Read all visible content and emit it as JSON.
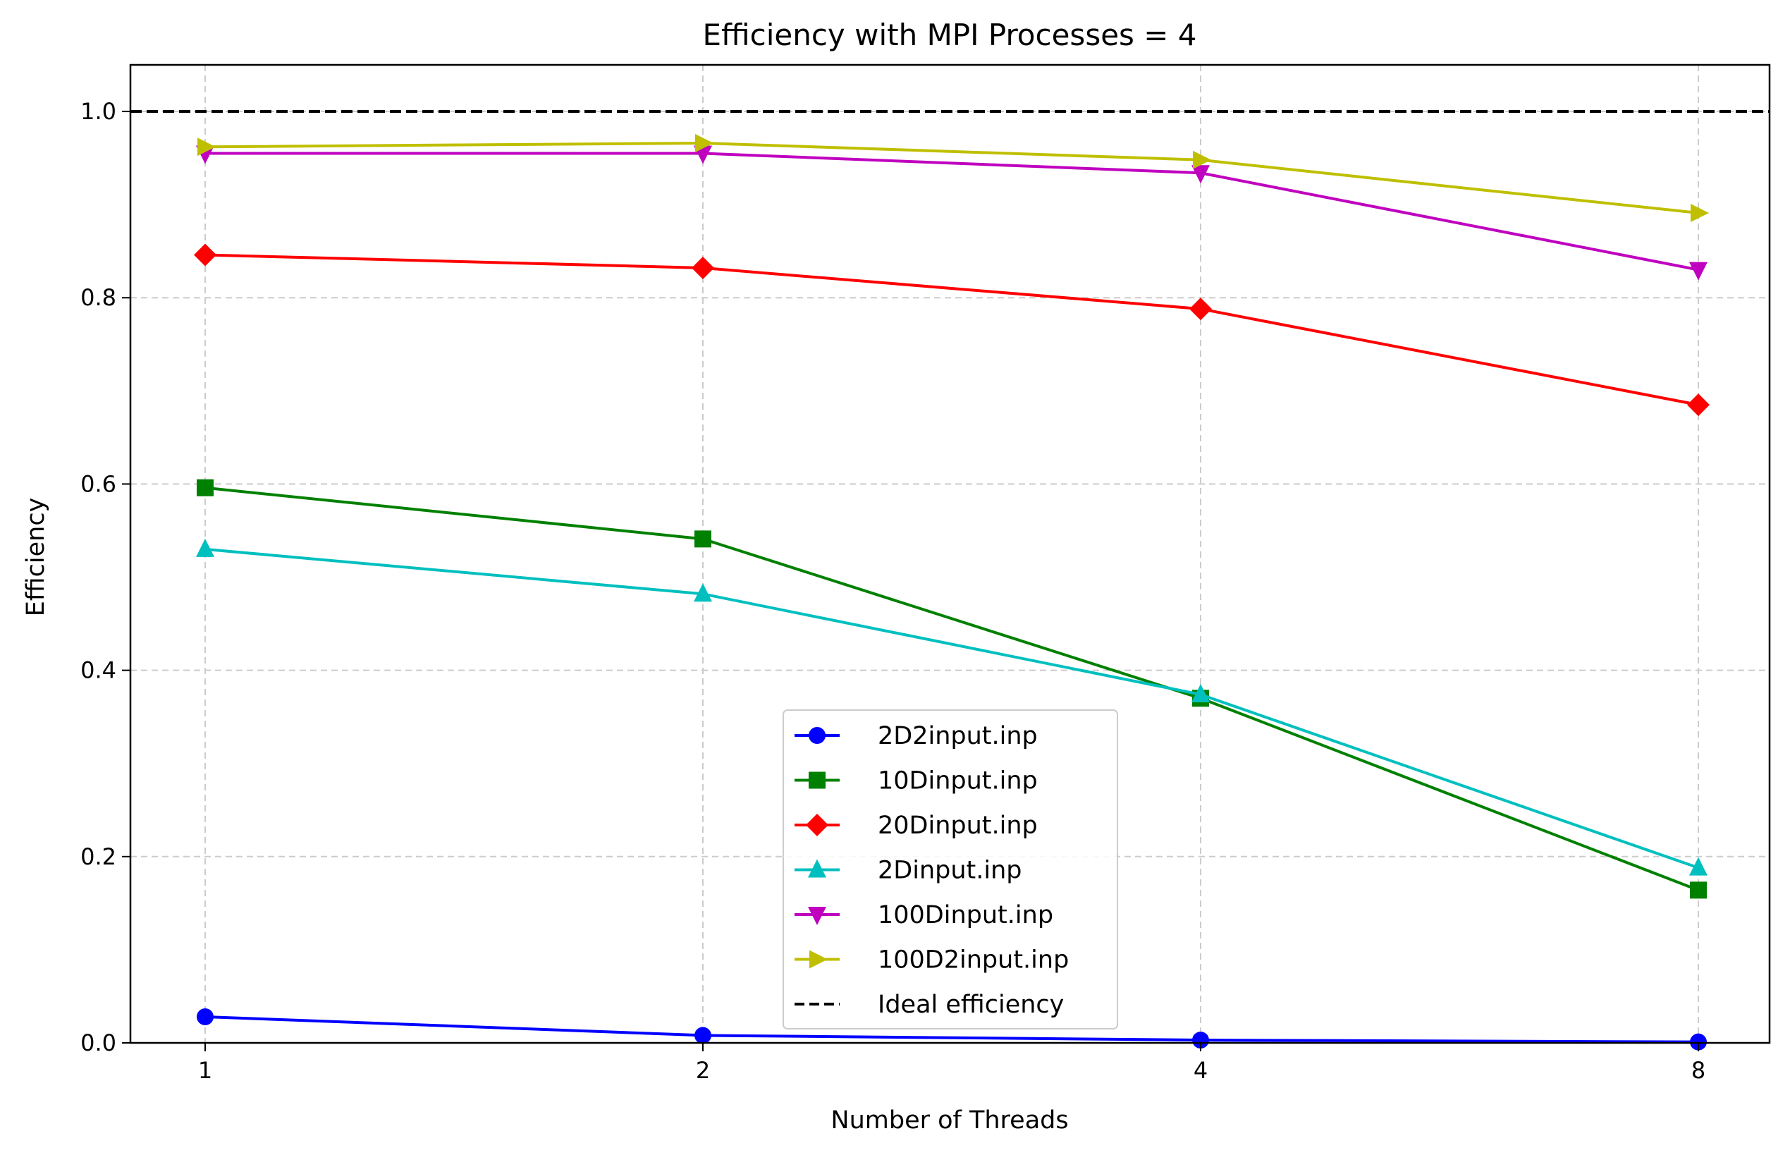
{
  "chart_data": {
    "type": "line",
    "title": "Efficiency with MPI Processes = 4",
    "xlabel": "Number of Threads",
    "ylabel": "Efficiency",
    "categories": [
      "1",
      "2",
      "4",
      "8"
    ],
    "ylim": [
      0,
      1.05
    ],
    "yticks": [
      "0.0",
      "0.2",
      "0.4",
      "0.6",
      "0.8",
      "1.0"
    ],
    "grid": true,
    "legend_position": "bottom-center",
    "series": [
      {
        "name": "2D2input.inp",
        "color": "#0000ff",
        "marker": "circle",
        "values": [
          0.028,
          0.008,
          0.003,
          0.001
        ]
      },
      {
        "name": "10Dinput.inp",
        "color": "#008000",
        "marker": "square",
        "values": [
          0.596,
          0.541,
          0.37,
          0.164
        ]
      },
      {
        "name": "20Dinput.inp",
        "color": "#ff0000",
        "marker": "diamond",
        "values": [
          0.846,
          0.832,
          0.788,
          0.685
        ]
      },
      {
        "name": "2Dinput.inp",
        "color": "#00bfbf",
        "marker": "triangle-up",
        "values": [
          0.53,
          0.482,
          0.374,
          0.188
        ]
      },
      {
        "name": "100Dinput.inp",
        "color": "#bf00bf",
        "marker": "triangle-down",
        "values": [
          0.955,
          0.955,
          0.934,
          0.83
        ]
      },
      {
        "name": "100D2input.inp",
        "color": "#bfbf00",
        "marker": "triangle-right",
        "values": [
          0.962,
          0.966,
          0.948,
          0.891
        ]
      }
    ],
    "reference_line": {
      "name": "Ideal efficiency",
      "value": 1.0,
      "color": "#000000",
      "style": "dashed"
    }
  }
}
